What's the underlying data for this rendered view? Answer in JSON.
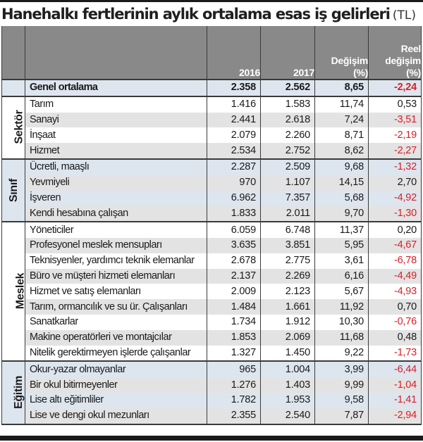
{
  "title": {
    "main": "Hanehalkı fertlerinin aylık ortalama esas iş gelirleri",
    "unit": "(TL)"
  },
  "header": {
    "col_2016": "2016",
    "col_2017": "2017",
    "col_change_line1": "Değişim",
    "col_change_line2": "(%)",
    "col_real_line1": "Reel",
    "col_real_line2": "değişim",
    "col_real_line3": "(%)"
  },
  "overall": {
    "label": "Genel ortalama",
    "y2016": "2.358",
    "y2017": "2.562",
    "change": "8,65",
    "real": "-2,24"
  },
  "groups": [
    {
      "name": "Sektör",
      "rows": [
        {
          "label": "Tarım",
          "y2016": "1.416",
          "y2017": "1.583",
          "change": "11,74",
          "real": "0,53"
        },
        {
          "label": "Sanayi",
          "y2016": "2.441",
          "y2017": "2.618",
          "change": "7,24",
          "real": "-3,51"
        },
        {
          "label": "İnşaat",
          "y2016": "2.079",
          "y2017": "2.260",
          "change": "8,71",
          "real": "-2,19"
        },
        {
          "label": "Hizmet",
          "y2016": "2.534",
          "y2017": "2.752",
          "change": "8,62",
          "real": "-2,27"
        }
      ]
    },
    {
      "name": "Sınıf",
      "rows": [
        {
          "label": "Ücretli, maaşlı",
          "y2016": "2.287",
          "y2017": "2.509",
          "change": "9,68",
          "real": "-1,32"
        },
        {
          "label": "Yevmiyeli",
          "y2016": "970",
          "y2017": "1.107",
          "change": "14,15",
          "real": "2,70"
        },
        {
          "label": "İşveren",
          "y2016": "6.962",
          "y2017": "7.357",
          "change": "5,68",
          "real": "-4,92"
        },
        {
          "label": "Kendi hesabına çalışan",
          "y2016": "1.833",
          "y2017": "2.011",
          "change": "9,70",
          "real": "-1,30"
        }
      ]
    },
    {
      "name": "Meslek",
      "rows": [
        {
          "label": "Yöneticiler",
          "y2016": "6.059",
          "y2017": "6.748",
          "change": "11,37",
          "real": "0,20"
        },
        {
          "label": "Profesyonel meslek mensupları",
          "y2016": "3.635",
          "y2017": "3.851",
          "change": "5,95",
          "real": "-4,67"
        },
        {
          "label": "Teknisyenler, yardımcı teknik elemanlar",
          "y2016": "2.678",
          "y2017": "2.775",
          "change": "3,61",
          "real": "-6,78"
        },
        {
          "label": "Büro ve müşteri hizmeti elemanları",
          "y2016": "2.137",
          "y2017": "2.269",
          "change": "6,16",
          "real": "-4,49"
        },
        {
          "label": "Hizmet ve satış elemanları",
          "y2016": "2.009",
          "y2017": "2.123",
          "change": "5,67",
          "real": "-4,93"
        },
        {
          "label": "Tarım, ormancılık ve su ür. Çalışanları",
          "y2016": "1.484",
          "y2017": "1.661",
          "change": "11,92",
          "real": "0,70"
        },
        {
          "label": "Sanatkarlar",
          "y2016": "1.734",
          "y2017": "1.912",
          "change": "10,30",
          "real": "-0,76"
        },
        {
          "label": "Makine operatörleri ve montajcılar",
          "y2016": "1.853",
          "y2017": "2.069",
          "change": "11,68",
          "real": "0,48"
        },
        {
          "label": "Nitelik gerektirmeyen işlerde çalışanlar",
          "y2016": "1.327",
          "y2017": "1.450",
          "change": "9,22",
          "real": "-1,73"
        }
      ]
    },
    {
      "name": "Eğitim",
      "rows": [
        {
          "label": "Okur-yazar olmayanlar",
          "y2016": "965",
          "y2017": "1.004",
          "change": "3,99",
          "real": "-6,44"
        },
        {
          "label": "Bir okul bitirmeyenler",
          "y2016": "1.276",
          "y2017": "1.403",
          "change": "9,99",
          "real": "-1,04"
        },
        {
          "label": "Lise altı eğitimliler",
          "y2016": "1.782",
          "y2017": "1.953",
          "change": "9,58",
          "real": "-1,41"
        },
        {
          "label": "Lise  ve dengi okul mezunları",
          "y2016": "2.355",
          "y2017": "2.540",
          "change": "7,87",
          "real": "-2,94"
        }
      ]
    }
  ],
  "colors": {
    "header_bg": "#898989",
    "negative": "#d81f26",
    "row_gray": "#e3e3e3",
    "row_blue": "#dde6ef"
  }
}
